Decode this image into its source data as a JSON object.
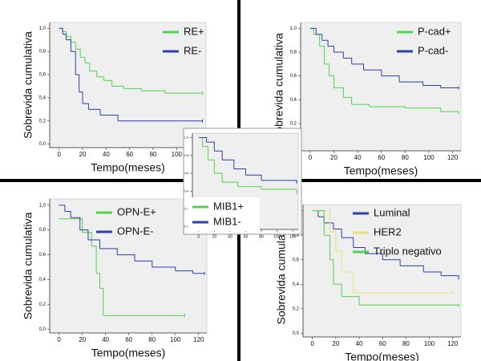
{
  "chart_data": [
    {
      "type": "step",
      "ylabel": "Sobrevida cumulativa",
      "xlabel": "Tempo(meses)",
      "legend": "upper right",
      "xlim": [
        -8,
        125
      ],
      "ylim": [
        -0.03,
        1.05
      ],
      "xticks": [
        0,
        20,
        40,
        60,
        80,
        100,
        120
      ],
      "yticks": [
        {
          "value": 0,
          "label": "0,0"
        },
        {
          "value": 0.2,
          "label": "0,2"
        },
        {
          "value": 0.4,
          "label": "0,4"
        },
        {
          "value": 0.6,
          "label": "0,6"
        },
        {
          "value": 0.8,
          "label": "0,8"
        },
        {
          "value": 1,
          "label": "1,0"
        }
      ],
      "series": [
        {
          "name": "RE+",
          "color": "#4fd44f",
          "x": [
            0,
            3,
            6,
            10,
            14,
            18,
            22,
            26,
            32,
            38,
            45,
            55,
            70,
            90,
            122
          ],
          "values": [
            1,
            0.97,
            0.93,
            0.88,
            0.82,
            0.75,
            0.7,
            0.63,
            0.58,
            0.55,
            0.5,
            0.48,
            0.46,
            0.44,
            0.44
          ]
        },
        {
          "name": "RE-",
          "color": "#2b3fb0",
          "x": [
            0,
            3,
            6,
            10,
            14,
            17,
            20,
            25,
            35,
            50,
            122
          ],
          "values": [
            1,
            0.95,
            0.9,
            0.8,
            0.6,
            0.45,
            0.35,
            0.3,
            0.25,
            0.2,
            0.2
          ]
        }
      ]
    },
    {
      "type": "step",
      "ylabel": "Sobrevida cumulativa",
      "xlabel": "Tempo(meses)",
      "legend": "upper right",
      "xlim": [
        -8,
        127
      ],
      "ylim": [
        -0.03,
        1.05
      ],
      "xticks": [
        0,
        20,
        40,
        60,
        80,
        100,
        120
      ],
      "yticks": [
        {
          "value": 0,
          "label": "0,0"
        },
        {
          "value": 0.2,
          "label": "0,2"
        },
        {
          "value": 0.4,
          "label": "0,4"
        },
        {
          "value": 0.6,
          "label": "0,6"
        },
        {
          "value": 0.8,
          "label": "0,8"
        },
        {
          "value": 1,
          "label": "1,0"
        }
      ],
      "series": [
        {
          "name": "P-cad+",
          "color": "#4fd44f",
          "x": [
            0,
            3,
            8,
            12,
            16,
            20,
            28,
            35,
            50,
            80,
            110,
            125
          ],
          "values": [
            1,
            0.95,
            0.85,
            0.7,
            0.6,
            0.5,
            0.42,
            0.36,
            0.34,
            0.33,
            0.3,
            0.29
          ]
        },
        {
          "name": "P-cad-",
          "color": "#2b3fb0",
          "x": [
            0,
            5,
            10,
            15,
            20,
            28,
            35,
            45,
            60,
            75,
            95,
            110,
            125
          ],
          "values": [
            1,
            0.95,
            0.9,
            0.85,
            0.8,
            0.75,
            0.7,
            0.65,
            0.6,
            0.55,
            0.52,
            0.5,
            0.5
          ]
        }
      ]
    },
    {
      "type": "step",
      "ylabel": "Sobrevida cumulativa",
      "xlabel": "Tempo(meses)",
      "legend": "upper right",
      "xlim": [
        -8,
        127
      ],
      "ylim": [
        -0.03,
        1.05
      ],
      "xticks": [
        0,
        20,
        40,
        60,
        80,
        100,
        120
      ],
      "yticks": [
        {
          "value": 0,
          "label": "0,0"
        },
        {
          "value": 0.2,
          "label": "0,2"
        },
        {
          "value": 0.4,
          "label": "0,4"
        },
        {
          "value": 0.6,
          "label": "0,6"
        },
        {
          "value": 0.8,
          "label": "0,8"
        },
        {
          "value": 1,
          "label": "1,0"
        }
      ],
      "series": [
        {
          "name": "OPN-E+",
          "color": "#4fd44f",
          "x": [
            0,
            18,
            20,
            28,
            32,
            35,
            38,
            108
          ],
          "values": [
            0.89,
            0.89,
            0.78,
            0.67,
            0.45,
            0.33,
            0.11,
            0.11
          ]
        },
        {
          "name": "OPN-E-",
          "color": "#2b3fb0",
          "x": [
            0,
            5,
            10,
            18,
            25,
            35,
            50,
            65,
            80,
            100,
            115,
            125
          ],
          "values": [
            1,
            0.95,
            0.9,
            0.8,
            0.72,
            0.65,
            0.6,
            0.55,
            0.5,
            0.47,
            0.45,
            0.45
          ]
        }
      ]
    },
    {
      "type": "step",
      "ylabel": "Sobrevida cumulativa",
      "xlabel": "Tempo(meses)",
      "legend": "upper right",
      "xlim": [
        -8,
        127
      ],
      "ylim": [
        -0.03,
        1.05
      ],
      "xticks": [
        0,
        20,
        40,
        60,
        80,
        100,
        120
      ],
      "yticks": [
        {
          "value": 0,
          "label": "0,0"
        },
        {
          "value": 0.2,
          "label": "0,2"
        },
        {
          "value": 0.4,
          "label": "0,4"
        },
        {
          "value": 0.6,
          "label": "0,6"
        },
        {
          "value": 0.8,
          "label": "0,8"
        },
        {
          "value": 1,
          "label": "1,0"
        }
      ],
      "series": [
        {
          "name": "Luminal",
          "color": "#2b3fb0",
          "x": [
            0,
            5,
            10,
            18,
            25,
            35,
            45,
            60,
            75,
            95,
            110,
            125
          ],
          "values": [
            1,
            0.95,
            0.9,
            0.85,
            0.78,
            0.7,
            0.65,
            0.6,
            0.55,
            0.5,
            0.47,
            0.45
          ]
        },
        {
          "name": "HER2",
          "color": "#e8e070",
          "x": [
            0,
            15,
            20,
            25,
            35,
            120
          ],
          "values": [
            1,
            0.83,
            0.67,
            0.5,
            0.33,
            0.33
          ]
        },
        {
          "name": "Triplo negativo",
          "color": "#4fd44f",
          "x": [
            0,
            10,
            15,
            18,
            25,
            40,
            125
          ],
          "values": [
            1,
            0.8,
            0.6,
            0.4,
            0.3,
            0.23,
            0.23
          ]
        }
      ]
    },
    {
      "type": "step",
      "legend": "lower left",
      "xlim": [
        -8,
        127
      ],
      "ylim": [
        -0.03,
        1.05
      ],
      "xticks": [
        0,
        20,
        40,
        60,
        80,
        100,
        120
      ],
      "yticks": [
        {
          "value": 0,
          "label": "0,0"
        },
        {
          "value": 0.2,
          "label": "0,2"
        },
        {
          "value": 0.4,
          "label": "0,4"
        },
        {
          "value": 0.6,
          "label": "0,6"
        },
        {
          "value": 0.8,
          "label": "0,8"
        },
        {
          "value": 1,
          "label": "1,0"
        }
      ],
      "series": [
        {
          "name": "MIB1+",
          "color": "#4fd44f",
          "x": [
            0,
            5,
            12,
            20,
            30,
            50,
            80,
            125
          ],
          "values": [
            1,
            0.9,
            0.75,
            0.6,
            0.5,
            0.45,
            0.42,
            0.38
          ]
        },
        {
          "name": "MIB1-",
          "color": "#2b3fb0",
          "x": [
            0,
            10,
            20,
            30,
            45,
            60,
            80,
            125
          ],
          "values": [
            1,
            0.95,
            0.85,
            0.75,
            0.65,
            0.58,
            0.52,
            0.5
          ]
        }
      ]
    }
  ]
}
